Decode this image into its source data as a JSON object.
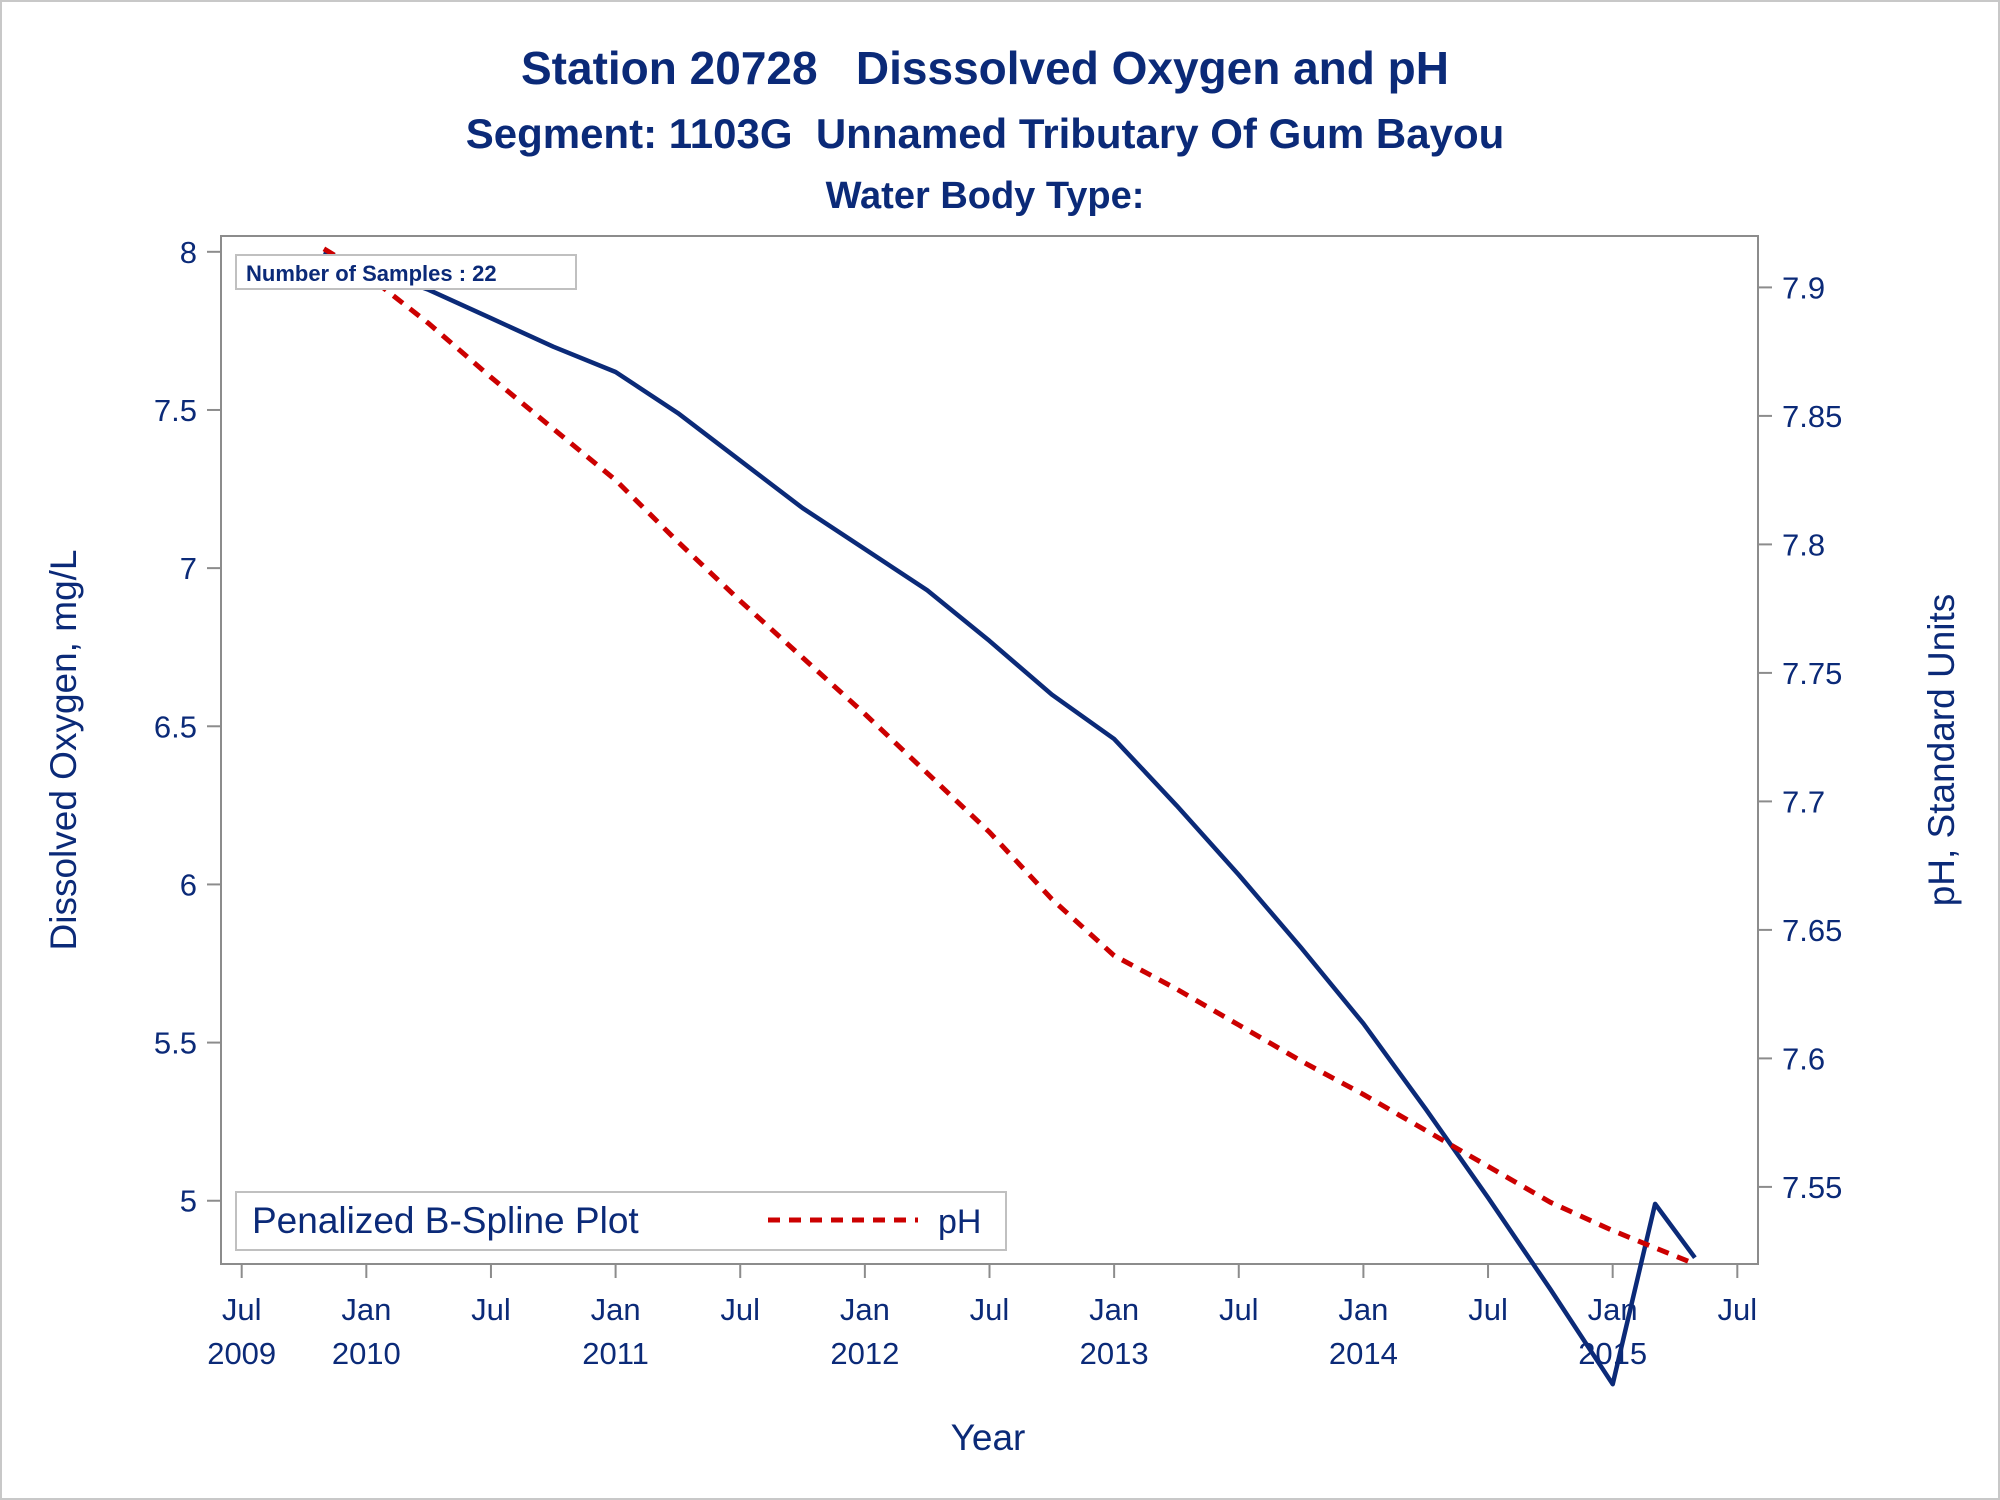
{
  "chart_data": {
    "type": "line",
    "title": "Station 20728   Disssolved Oxygen and pH",
    "subtitle": "Segment: 1103G  Unnamed Tributary Of Gum Bayou",
    "subtitle2": "Water Body Type:",
    "xlabel": "Year",
    "ylabel_left": "Dissolved Oxygen, mg/L",
    "ylabel_right": "pH, Standard Units",
    "annotation": "Number of Samples : 22",
    "legend": {
      "placement": "bottom-left",
      "title": "Penalized B-Spline Plot",
      "entries": [
        "pH"
      ]
    },
    "x_ticks": [
      {
        "label": "Jul",
        "year": "2009"
      },
      {
        "label": "Jan",
        "year": "2010"
      },
      {
        "label": "Jul",
        "year": ""
      },
      {
        "label": "Jan",
        "year": "2011"
      },
      {
        "label": "Jul",
        "year": ""
      },
      {
        "label": "Jan",
        "year": "2012"
      },
      {
        "label": "Jul",
        "year": ""
      },
      {
        "label": "Jan",
        "year": "2013"
      },
      {
        "label": "Jul",
        "year": ""
      },
      {
        "label": "Jan",
        "year": "2014"
      },
      {
        "label": "Jul",
        "year": ""
      },
      {
        "label": "Jan",
        "year": "2015"
      },
      {
        "label": "Jul",
        "year": ""
      }
    ],
    "y_left_ticks": [
      "5",
      "5.5",
      "6",
      "6.5",
      "7",
      "7.5",
      "8"
    ],
    "y_right_ticks": [
      "7.55",
      "7.6",
      "7.65",
      "7.7",
      "7.75",
      "7.8",
      "7.85",
      "7.9"
    ],
    "xlim": [
      2009.417,
      2015.583
    ],
    "ylim_left": [
      4.8,
      8.05
    ],
    "ylim_right": [
      7.52,
      7.92
    ],
    "grid": false,
    "series": [
      {
        "name": "",
        "axis": "left",
        "color": "#0b2a78",
        "style": "solid",
        "x": [
          2009.83,
          2010.0,
          2010.25,
          2010.5,
          2010.75,
          2011.0,
          2011.25,
          2011.5,
          2011.75,
          2012.0,
          2012.25,
          2012.5,
          2012.75,
          2013.0,
          2013.25,
          2013.5,
          2013.75,
          2014.0,
          2014.25,
          2014.5,
          2014.75,
          2015.0,
          2015.17,
          2015.33
        ],
        "values": [
          8.0,
          7.95,
          7.88,
          7.79,
          7.7,
          7.62,
          7.49,
          7.34,
          7.19,
          7.06,
          6.93,
          6.77,
          6.6,
          6.46,
          6.25,
          6.03,
          5.8,
          5.56,
          5.29,
          5.01,
          4.72,
          4.42,
          4.99,
          4.82
        ]
      },
      {
        "name": "pH",
        "axis": "right",
        "color": "#cc0000",
        "style": "dashed",
        "x": [
          2009.83,
          2010.0,
          2010.25,
          2010.5,
          2010.75,
          2011.0,
          2011.25,
          2011.5,
          2011.75,
          2012.0,
          2012.25,
          2012.5,
          2012.75,
          2013.0,
          2013.25,
          2013.5,
          2013.75,
          2014.0,
          2014.25,
          2014.5,
          2014.75,
          2015.0,
          2015.33
        ],
        "values": [
          7.915,
          7.905,
          7.886,
          7.865,
          7.845,
          7.825,
          7.801,
          7.778,
          7.756,
          7.734,
          7.711,
          7.688,
          7.662,
          7.64,
          7.627,
          7.613,
          7.599,
          7.586,
          7.572,
          7.558,
          7.544,
          7.533,
          7.52
        ]
      }
    ]
  }
}
